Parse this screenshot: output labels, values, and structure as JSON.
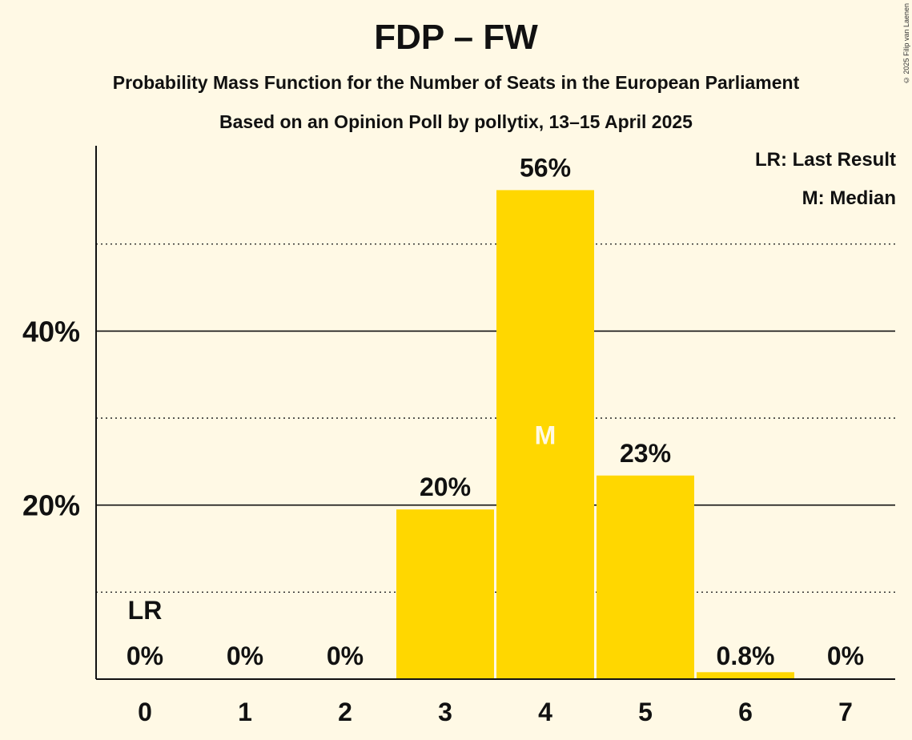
{
  "title": "FDP – FW",
  "subtitle_1": "Probability Mass Function for the Number of Seats in the European Parliament",
  "subtitle_2": "Based on an Opinion Poll by pollytix, 13–15 April 2025",
  "copyright": "© 2025 Filip van Laenen",
  "legend": {
    "last_result": "LR: Last Result",
    "median": "M: Median"
  },
  "colors": {
    "bar": "#FFD700",
    "background": "#FFF9E5",
    "text": "#111111"
  },
  "chart_data": {
    "type": "bar",
    "categories": [
      "0",
      "1",
      "2",
      "3",
      "4",
      "5",
      "6",
      "7"
    ],
    "values": [
      0,
      0,
      0,
      19.5,
      56.2,
      23.4,
      0.8,
      0
    ],
    "value_labels": [
      "0%",
      "0%",
      "0%",
      "20%",
      "56%",
      "23%",
      "0.8%",
      "0%"
    ],
    "last_result_index": 0,
    "last_result_marker": "LR",
    "median_index": 4,
    "median_marker": "M",
    "ylim": [
      0,
      61.3
    ],
    "y_ticks": [
      20,
      40
    ],
    "y_tick_labels": [
      "20%",
      "40%"
    ],
    "y_minor_gridlines": [
      10,
      30,
      50
    ],
    "grid": true
  }
}
